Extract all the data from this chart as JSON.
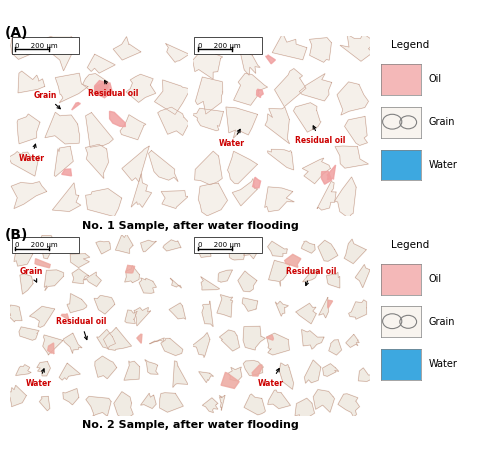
{
  "title_A": "(A)",
  "title_B": "(B)",
  "caption_A": "No. 1 Sample, after water flooding",
  "caption_B": "No. 2 Sample, after water flooding",
  "legend_title": "Legend",
  "legend_items": [
    "Oil",
    "Grain",
    "Water"
  ],
  "oil_color": "#f4b8b8",
  "water_color": "#3da8e0",
  "grain_outline_color": "#aaaaaa",
  "scale_bar_text": "0     200 μm",
  "label_grain": "Grain",
  "label_water": "Water",
  "label_residual_oil": "Residual oil",
  "bg_color": "#ffffff",
  "figsize": [
    5.0,
    4.75
  ],
  "dpi": 100,
  "bg_blue_A": "#5aadde",
  "bg_blue_B": "#6ab5d8",
  "grain_color_A": "#f5f0ea",
  "grain_color_B": "#f0ebe3",
  "oil_patch_color_A": "#f0a0a0",
  "oil_patch_color_B": "#eda8a0"
}
